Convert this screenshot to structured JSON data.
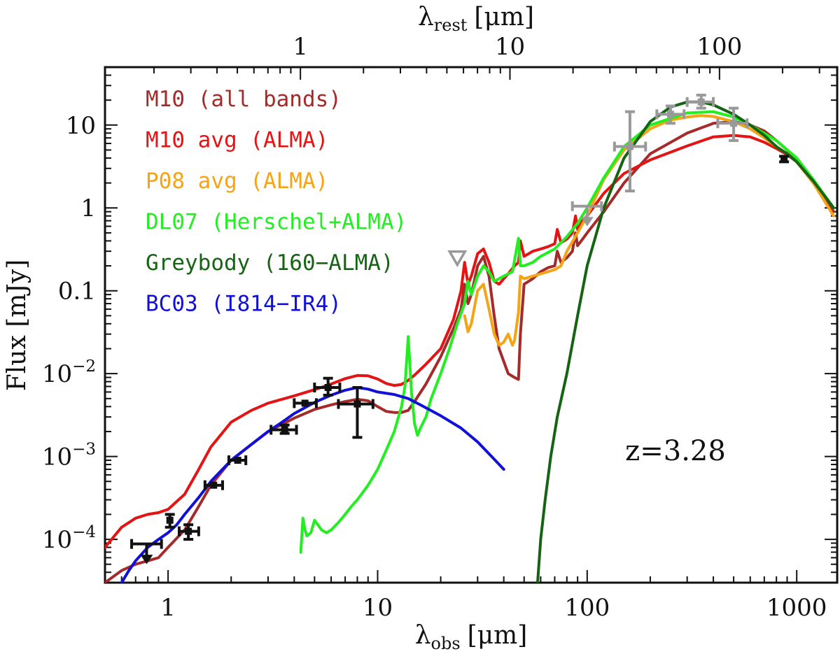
{
  "chart_data": {
    "type": "line",
    "xscale": "log",
    "yscale": "log",
    "xlim": [
      0.5,
      1560
    ],
    "ylim": [
      3e-05,
      50
    ],
    "x2lim": [
      0.1168,
      364.5
    ],
    "grid": false,
    "legend_placement": "top-left",
    "xlabel": "λobs [μm]",
    "ylabel": "Flux [mJy]",
    "x2label": "λrest [μm]",
    "xlabel_parts": {
      "sym": "λ",
      "sub": "obs",
      "unit": "[μm]"
    },
    "ylabel_parts": {
      "text": "Flux [mJy]"
    },
    "x2label_parts": {
      "sym": "λ",
      "sub": "rest",
      "unit": "[μm]"
    },
    "annotation": "z=3.28",
    "x_ticks": [
      {
        "value": 1,
        "label": "1"
      },
      {
        "value": 10,
        "label": "10"
      },
      {
        "value": 100,
        "label": "100"
      },
      {
        "value": 1000,
        "label": "1000"
      }
    ],
    "x2_ticks": [
      {
        "value": 1,
        "label": "1"
      },
      {
        "value": 10,
        "label": "10"
      },
      {
        "value": 100,
        "label": "100"
      }
    ],
    "y_ticks": [
      {
        "value": 0.0001,
        "base": "10",
        "exp": "−4"
      },
      {
        "value": 0.001,
        "base": "10",
        "exp": "−3"
      },
      {
        "value": 0.01,
        "base": "10",
        "exp": "−2"
      },
      {
        "value": 0.1,
        "label": "0.1"
      },
      {
        "value": 1,
        "label": "1"
      },
      {
        "value": 10,
        "label": "10"
      }
    ],
    "series": [
      {
        "name": "M10 (all bands)",
        "color": "#a52a2a",
        "x": [
          0.5,
          0.6,
          0.7,
          0.8,
          0.9,
          1.0,
          1.2,
          1.4,
          1.6,
          2.0,
          2.5,
          3.0,
          4.0,
          5.0,
          6.0,
          7.0,
          8.0,
          9.0,
          10,
          11,
          12,
          13,
          14,
          15,
          17,
          20,
          23,
          25,
          26,
          27,
          28,
          30,
          32,
          34,
          36,
          38,
          40,
          42,
          45,
          47,
          48,
          50,
          55,
          60,
          65,
          70,
          72,
          75,
          80,
          85,
          88,
          90,
          95,
          100,
          120,
          150,
          200,
          300,
          400,
          500,
          600,
          700,
          800,
          900,
          1000,
          1200,
          1500
        ],
        "y": [
          3e-05,
          4.2e-05,
          5e-05,
          5.5e-05,
          6e-05,
          8e-05,
          0.00013,
          0.00025,
          0.00045,
          0.0009,
          0.0014,
          0.002,
          0.0029,
          0.0037,
          0.0042,
          0.0046,
          0.0049,
          0.0047,
          0.004,
          0.0035,
          0.0034,
          0.0034,
          0.0036,
          0.0046,
          0.0075,
          0.016,
          0.035,
          0.06,
          0.12,
          0.07,
          0.09,
          0.2,
          0.26,
          0.15,
          0.05,
          0.02,
          0.014,
          0.01,
          0.009,
          0.0085,
          0.03,
          0.12,
          0.14,
          0.17,
          0.19,
          0.2,
          0.3,
          0.22,
          0.25,
          0.3,
          0.5,
          0.35,
          0.42,
          0.5,
          0.9,
          2.0,
          4.5,
          8.0,
          10.5,
          11.0,
          10.0,
          8.5,
          6.5,
          5.0,
          3.6,
          2.0,
          0.9
        ]
      },
      {
        "name": "M10 avg (ALMA)",
        "color": "#e41414",
        "x": [
          0.5,
          0.6,
          0.7,
          0.8,
          0.9,
          1.0,
          1.2,
          1.4,
          1.6,
          2.0,
          2.5,
          3.0,
          4.0,
          5.0,
          6.0,
          7.0,
          8.0,
          9.0,
          10,
          11,
          12,
          13,
          14,
          15,
          17,
          20,
          23,
          25,
          26,
          27,
          28,
          30,
          32,
          34,
          36,
          38,
          40,
          42,
          45,
          47,
          48,
          50,
          55,
          60,
          65,
          70,
          72,
          75,
          80,
          85,
          88,
          90,
          95,
          100,
          120,
          150,
          200,
          300,
          400,
          500,
          600,
          700,
          800,
          900,
          1000,
          1200,
          1500
        ],
        "y": [
          8e-05,
          0.00014,
          0.00018,
          0.0002,
          0.00021,
          0.00023,
          0.00035,
          0.0007,
          0.0013,
          0.0026,
          0.0036,
          0.0044,
          0.0054,
          0.0064,
          0.0075,
          0.0087,
          0.0095,
          0.0094,
          0.0086,
          0.0076,
          0.0072,
          0.0074,
          0.0083,
          0.0096,
          0.013,
          0.02,
          0.045,
          0.1,
          0.22,
          0.12,
          0.15,
          0.28,
          0.32,
          0.22,
          0.13,
          0.12,
          0.14,
          0.16,
          0.2,
          0.22,
          0.4,
          0.26,
          0.3,
          0.32,
          0.34,
          0.37,
          0.55,
          0.38,
          0.42,
          0.5,
          0.8,
          0.55,
          0.7,
          0.8,
          1.5,
          2.6,
          3.8,
          5.6,
          7.2,
          7.5,
          7.2,
          6.2,
          5.2,
          4.4,
          3.6,
          2.1,
          1.0
        ]
      },
      {
        "name": "P08 avg (ALMA)",
        "color": "#f4a416",
        "x": [
          26,
          27,
          28,
          30,
          32,
          34,
          36,
          38,
          40,
          42,
          44,
          45,
          47,
          48,
          50,
          55,
          60,
          65,
          70,
          75,
          80,
          90,
          100,
          120,
          150,
          200,
          250,
          300,
          350,
          400,
          500,
          600,
          700,
          800,
          900,
          1000,
          1200,
          1500
        ],
        "y": [
          0.05,
          0.032,
          0.04,
          0.1,
          0.12,
          0.06,
          0.03,
          0.022,
          0.024,
          0.03,
          0.022,
          0.025,
          0.055,
          0.15,
          0.14,
          0.15,
          0.16,
          0.17,
          0.18,
          0.2,
          0.3,
          0.5,
          0.8,
          2.2,
          5.0,
          9.0,
          11.5,
          12.5,
          13.0,
          12.7,
          11.0,
          9.0,
          7.0,
          5.5,
          4.5,
          3.6,
          2.0,
          0.8
        ]
      },
      {
        "name": "DL07 (Herschel+ALMA)",
        "color": "#22ee22",
        "x": [
          4.3,
          4.4,
          4.5,
          4.6,
          4.8,
          5.0,
          5.4,
          5.7,
          6.0,
          6.5,
          7.0,
          7.5,
          8.0,
          9.0,
          10,
          11,
          12,
          13,
          13.5,
          14,
          14.5,
          15,
          15.5,
          16,
          17,
          18,
          20,
          22,
          24,
          26,
          27,
          28,
          30,
          32,
          34,
          36,
          40,
          44,
          47,
          48,
          50,
          55,
          60,
          70,
          80,
          90,
          100,
          120,
          150,
          200,
          300,
          400,
          500,
          600,
          800,
          1000,
          1200,
          1500
        ],
        "y": [
          7e-05,
          0.00018,
          0.00013,
          0.00011,
          0.00012,
          0.00017,
          0.00013,
          0.00012,
          0.00013,
          0.00016,
          0.0002,
          0.00025,
          0.0003,
          0.00045,
          0.0007,
          0.0012,
          0.002,
          0.004,
          0.007,
          0.028,
          0.006,
          0.0025,
          0.0018,
          0.0022,
          0.003,
          0.005,
          0.01,
          0.02,
          0.04,
          0.07,
          0.13,
          0.09,
          0.15,
          0.2,
          0.17,
          0.13,
          0.15,
          0.17,
          0.43,
          0.2,
          0.2,
          0.22,
          0.26,
          0.32,
          0.45,
          0.65,
          1.0,
          2.3,
          5.5,
          10.0,
          14.0,
          14.5,
          12.5,
          10.0,
          6.5,
          4.0,
          2.2,
          1.0
        ]
      },
      {
        "name": "Greybody (160−ALMA)",
        "color": "#146414",
        "x": [
          58,
          60,
          63,
          67,
          72,
          80,
          90,
          100,
          120,
          150,
          200,
          250,
          300,
          350,
          400,
          500,
          600,
          700,
          800,
          900,
          1000,
          1200,
          1500
        ],
        "y": [
          3e-05,
          0.0001,
          0.0003,
          0.001,
          0.003,
          0.01,
          0.05,
          0.2,
          1.0,
          4.0,
          11.0,
          16.5,
          19.0,
          19.0,
          17.5,
          13.5,
          10.0,
          7.5,
          5.5,
          4.5,
          3.6,
          2.1,
          1.0
        ]
      },
      {
        "name": "BC03 (I814−IR4)",
        "color": "#1010d8",
        "x": [
          0.6,
          0.65,
          0.7,
          0.8,
          0.9,
          1.0,
          1.1,
          1.2,
          1.4,
          1.6,
          2.0,
          2.5,
          3.0,
          3.5,
          4.0,
          5.0,
          6.0,
          7.0,
          8.0,
          9.0,
          10,
          12,
          14,
          16,
          20,
          25,
          30,
          35,
          40
        ],
        "y": [
          3e-05,
          4.2e-05,
          5.5e-05,
          8e-05,
          0.0001,
          0.00012,
          0.00015,
          0.0002,
          0.00032,
          0.0005,
          0.0009,
          0.0014,
          0.002,
          0.0026,
          0.0033,
          0.0045,
          0.0055,
          0.0063,
          0.0068,
          0.0065,
          0.006,
          0.0056,
          0.005,
          0.0042,
          0.0031,
          0.0022,
          0.0015,
          0.001,
          0.0007
        ]
      }
    ],
    "photometry": [
      {
        "x": 0.79,
        "y": 8.8e-05,
        "xerr": [
          0.67,
          0.93
        ],
        "upper_limit": true,
        "color": "#111111"
      },
      {
        "x": 1.02,
        "y": 0.00017,
        "yerr": [
          0.00014,
          0.0002
        ],
        "color": "#111111"
      },
      {
        "x": 1.25,
        "y": 0.000125,
        "xerr": [
          1.13,
          1.4
        ],
        "yerr": [
          0.0001,
          0.00015
        ],
        "color": "#111111"
      },
      {
        "x": 1.65,
        "y": 0.00045,
        "xerr": [
          1.5,
          1.82
        ],
        "color": "#111111"
      },
      {
        "x": 2.15,
        "y": 0.0009,
        "xerr": [
          1.95,
          2.35
        ],
        "color": "#111111"
      },
      {
        "x": 3.6,
        "y": 0.0021,
        "xerr": [
          3.1,
          4.1
        ],
        "yerr": [
          0.0019,
          0.0024
        ],
        "color": "#111111"
      },
      {
        "x": 4.5,
        "y": 0.0044,
        "xerr": [
          4.0,
          5.1
        ],
        "color": "#111111"
      },
      {
        "x": 5.8,
        "y": 0.0068,
        "xerr": [
          5.0,
          6.6
        ],
        "yerr": [
          0.0055,
          0.0088
        ],
        "color": "#111111"
      },
      {
        "x": 8.0,
        "y": 0.0043,
        "xerr": [
          6.5,
          9.5
        ],
        "yerr": [
          0.0017,
          0.0068
        ],
        "color": "#111111"
      },
      {
        "x": 24,
        "y": 0.25,
        "upper_limit": true,
        "marker": "triangle-down-open",
        "color": "#999999"
      },
      {
        "x": 100,
        "y": 1.05,
        "xerr": [
          85,
          117
        ],
        "upper_limit": true,
        "color": "#999999"
      },
      {
        "x": 160,
        "y": 5.5,
        "xerr": [
          135,
          190
        ],
        "yerr": [
          1.6,
          14.5
        ],
        "color": "#999999"
      },
      {
        "x": 250,
        "y": 13.5,
        "xerr": [
          215,
          290
        ],
        "yerr": [
          10.5,
          17.0
        ],
        "color": "#999999"
      },
      {
        "x": 350,
        "y": 19.0,
        "xerr": [
          300,
          400
        ],
        "yerr": [
          16.0,
          23.0
        ],
        "color": "#999999"
      },
      {
        "x": 500,
        "y": 10.5,
        "xerr": [
          420,
          580
        ],
        "yerr": [
          6.5,
          16.0
        ],
        "color": "#999999"
      },
      {
        "x": 870,
        "y": 3.9,
        "yerr": [
          3.6,
          4.2
        ],
        "color": "#111111"
      }
    ]
  }
}
